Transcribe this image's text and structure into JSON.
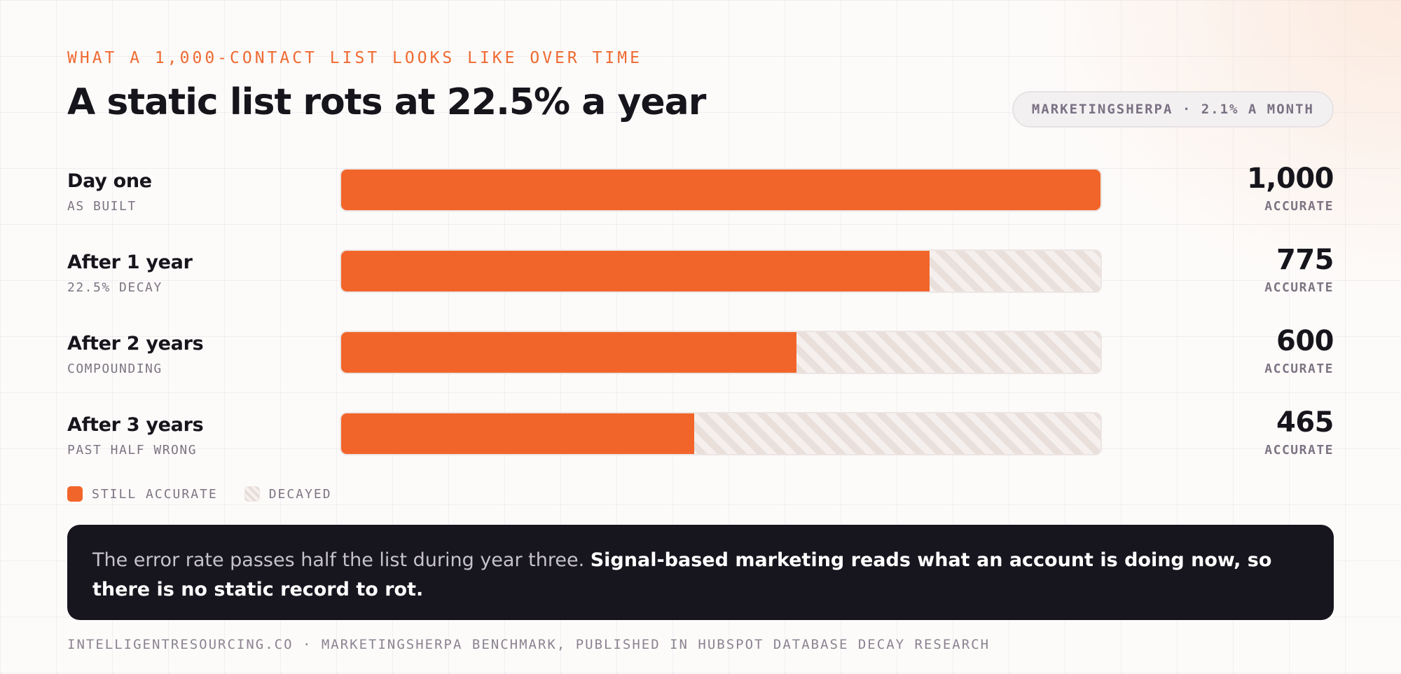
{
  "header": {
    "eyebrow": "WHAT A 1,000-CONTACT LIST LOOKS LIKE OVER TIME",
    "title": "A static list rots at 22.5% a year",
    "source_pill": "MARKETINGSHERPA · 2.1% A MONTH"
  },
  "chart_data": {
    "type": "bar",
    "orientation": "horizontal",
    "stacked": true,
    "xlim": [
      0,
      1000
    ],
    "categories": [
      "Day one",
      "After 1 year",
      "After 2 years",
      "After 3 years"
    ],
    "category_subtitles": [
      "AS BUILT",
      "22.5% DECAY",
      "COMPOUNDING",
      "PAST HALF WRONG"
    ],
    "series": [
      {
        "name": "STILL ACCURATE",
        "values": [
          1000,
          775,
          600,
          465
        ],
        "color": "#f2652a"
      },
      {
        "name": "DECAYED",
        "values": [
          0,
          225,
          400,
          535
        ],
        "color": "#efe7e4"
      }
    ],
    "data_labels": [
      "1,000",
      "775",
      "600",
      "465"
    ],
    "data_label_unit": "ACCURATE",
    "legend": {
      "placement": "bottom-left",
      "items": [
        "STILL ACCURATE",
        "DECAYED"
      ]
    }
  },
  "callout": {
    "text": "The error rate passes half the list during year three. ",
    "strong": "Signal-based marketing reads what an account is doing now, so there is no static record to rot."
  },
  "footer": {
    "text": "INTELLIGENTRESOURCING.CO · MARKETINGSHERPA BENCHMARK, PUBLISHED IN HUBSPOT DATABASE DECAY RESEARCH"
  }
}
